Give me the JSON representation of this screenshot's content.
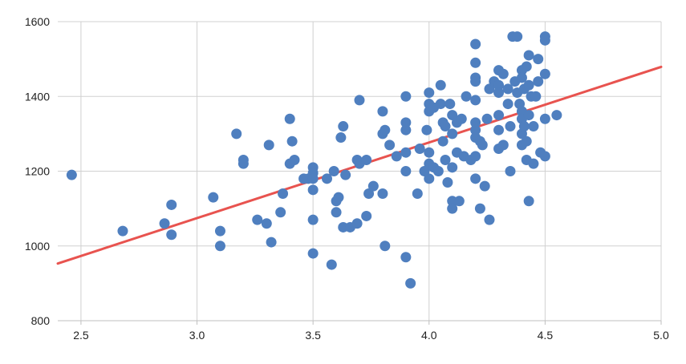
{
  "chart_data": {
    "type": "scatter",
    "title": "",
    "xlabel": "",
    "ylabel": "",
    "xlim": [
      2.4,
      5.0
    ],
    "ylim": [
      800,
      1600
    ],
    "grid": true,
    "legend": "none",
    "x_ticks": [
      {
        "value": 2.5,
        "label": "2.5"
      },
      {
        "value": 3.0,
        "label": "3.0"
      },
      {
        "value": 3.5,
        "label": "3.5"
      },
      {
        "value": 4.0,
        "label": "4.0"
      },
      {
        "value": 4.5,
        "label": "4.5"
      },
      {
        "value": 5.0,
        "label": "5.0"
      }
    ],
    "y_ticks": [
      {
        "value": 800,
        "label": "800"
      },
      {
        "value": 1000,
        "label": "1000"
      },
      {
        "value": 1200,
        "label": "1200"
      },
      {
        "value": 1400,
        "label": "1400"
      },
      {
        "value": 1600,
        "label": "1600"
      }
    ],
    "colors": {
      "points": "#4f7fbf",
      "trendline": "#e8534f",
      "grid": "#d0d0d0",
      "axis": "#bfbfbf"
    },
    "trendline": {
      "type": "linear",
      "x": [
        2.4,
        5.0
      ],
      "y": [
        953,
        1479
      ]
    },
    "points": [
      [
        2.46,
        1190
      ],
      [
        2.68,
        1040
      ],
      [
        2.86,
        1060
      ],
      [
        2.89,
        1030
      ],
      [
        2.89,
        1110
      ],
      [
        3.07,
        1130
      ],
      [
        3.1,
        1040
      ],
      [
        3.1,
        1000
      ],
      [
        3.17,
        1300
      ],
      [
        3.2,
        1230
      ],
      [
        3.2,
        1220
      ],
      [
        3.26,
        1070
      ],
      [
        3.3,
        1060
      ],
      [
        3.31,
        1270
      ],
      [
        3.32,
        1010
      ],
      [
        3.36,
        1090
      ],
      [
        3.37,
        1140
      ],
      [
        3.4,
        1340
      ],
      [
        3.41,
        1280
      ],
      [
        3.4,
        1220
      ],
      [
        3.42,
        1230
      ],
      [
        3.46,
        1180
      ],
      [
        3.48,
        1180
      ],
      [
        3.5,
        1210
      ],
      [
        3.5,
        1195
      ],
      [
        3.5,
        1180
      ],
      [
        3.5,
        1150
      ],
      [
        3.5,
        1070
      ],
      [
        3.5,
        980
      ],
      [
        3.56,
        1180
      ],
      [
        3.58,
        950
      ],
      [
        3.59,
        1200
      ],
      [
        3.6,
        1120
      ],
      [
        3.6,
        1090
      ],
      [
        3.61,
        1130
      ],
      [
        3.62,
        1290
      ],
      [
        3.63,
        1320
      ],
      [
        3.63,
        1050
      ],
      [
        3.64,
        1190
      ],
      [
        3.66,
        1050
      ],
      [
        3.69,
        1060
      ],
      [
        3.69,
        1230
      ],
      [
        3.7,
        1390
      ],
      [
        3.7,
        1220
      ],
      [
        3.73,
        1230
      ],
      [
        3.73,
        1080
      ],
      [
        3.74,
        1140
      ],
      [
        3.76,
        1160
      ],
      [
        3.8,
        1300
      ],
      [
        3.8,
        1360
      ],
      [
        3.8,
        1140
      ],
      [
        3.81,
        1310
      ],
      [
        3.81,
        1000
      ],
      [
        3.83,
        1270
      ],
      [
        3.86,
        1240
      ],
      [
        3.9,
        1400
      ],
      [
        3.9,
        1330
      ],
      [
        3.9,
        1310
      ],
      [
        3.9,
        1250
      ],
      [
        3.9,
        1200
      ],
      [
        3.9,
        970
      ],
      [
        3.92,
        900
      ],
      [
        3.95,
        1140
      ],
      [
        3.96,
        1260
      ],
      [
        3.98,
        1200
      ],
      [
        3.99,
        1310
      ],
      [
        4.0,
        1410
      ],
      [
        4.0,
        1380
      ],
      [
        4.0,
        1360
      ],
      [
        4.0,
        1250
      ],
      [
        4.0,
        1220
      ],
      [
        4.0,
        1180
      ],
      [
        4.02,
        1370
      ],
      [
        4.02,
        1210
      ],
      [
        4.04,
        1200
      ],
      [
        4.05,
        1430
      ],
      [
        4.05,
        1380
      ],
      [
        4.06,
        1330
      ],
      [
        4.06,
        1280
      ],
      [
        4.07,
        1320
      ],
      [
        4.07,
        1230
      ],
      [
        4.08,
        1170
      ],
      [
        4.09,
        1380
      ],
      [
        4.1,
        1350
      ],
      [
        4.1,
        1300
      ],
      [
        4.1,
        1210
      ],
      [
        4.1,
        1120
      ],
      [
        4.1,
        1100
      ],
      [
        4.12,
        1330
      ],
      [
        4.12,
        1250
      ],
      [
        4.13,
        1120
      ],
      [
        4.14,
        1340
      ],
      [
        4.15,
        1240
      ],
      [
        4.16,
        1400
      ],
      [
        4.18,
        1230
      ],
      [
        4.2,
        1540
      ],
      [
        4.2,
        1490
      ],
      [
        4.2,
        1450
      ],
      [
        4.2,
        1440
      ],
      [
        4.2,
        1390
      ],
      [
        4.2,
        1330
      ],
      [
        4.2,
        1310
      ],
      [
        4.2,
        1290
      ],
      [
        4.2,
        1240
      ],
      [
        4.2,
        1180
      ],
      [
        4.22,
        1100
      ],
      [
        4.22,
        1280
      ],
      [
        4.23,
        1270
      ],
      [
        4.24,
        1160
      ],
      [
        4.25,
        1340
      ],
      [
        4.26,
        1420
      ],
      [
        4.26,
        1070
      ],
      [
        4.28,
        1440
      ],
      [
        4.3,
        1470
      ],
      [
        4.3,
        1430
      ],
      [
        4.3,
        1410
      ],
      [
        4.3,
        1350
      ],
      [
        4.3,
        1310
      ],
      [
        4.3,
        1260
      ],
      [
        4.32,
        1460
      ],
      [
        4.32,
        1270
      ],
      [
        4.34,
        1420
      ],
      [
        4.34,
        1380
      ],
      [
        4.35,
        1320
      ],
      [
        4.35,
        1200
      ],
      [
        4.36,
        1560
      ],
      [
        4.37,
        1440
      ],
      [
        4.38,
        1560
      ],
      [
        4.38,
        1410
      ],
      [
        4.39,
        1380
      ],
      [
        4.4,
        1470
      ],
      [
        4.4,
        1450
      ],
      [
        4.4,
        1360
      ],
      [
        4.4,
        1340
      ],
      [
        4.4,
        1300
      ],
      [
        4.4,
        1270
      ],
      [
        4.41,
        1420
      ],
      [
        4.41,
        1320
      ],
      [
        4.42,
        1480
      ],
      [
        4.42,
        1280
      ],
      [
        4.42,
        1230
      ],
      [
        4.43,
        1510
      ],
      [
        4.43,
        1430
      ],
      [
        4.43,
        1350
      ],
      [
        4.43,
        1120
      ],
      [
        4.44,
        1400
      ],
      [
        4.45,
        1320
      ],
      [
        4.45,
        1220
      ],
      [
        4.46,
        1400
      ],
      [
        4.47,
        1500
      ],
      [
        4.47,
        1440
      ],
      [
        4.48,
        1250
      ],
      [
        4.5,
        1560
      ],
      [
        4.5,
        1550
      ],
      [
        4.5,
        1460
      ],
      [
        4.5,
        1340
      ],
      [
        4.5,
        1240
      ],
      [
        4.55,
        1350
      ]
    ]
  }
}
